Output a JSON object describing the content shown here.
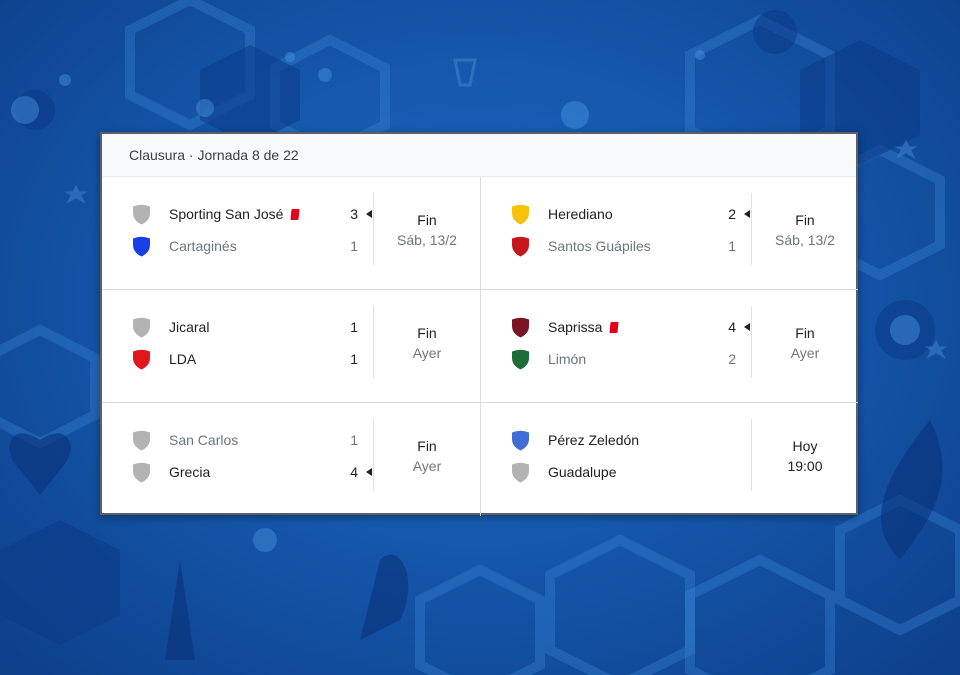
{
  "header": {
    "title": "Clausura · Jornada 8 de 22"
  },
  "colors": {
    "gray_shield": "#b3b3b3",
    "red_card": "#e2001a"
  },
  "matches": [
    {
      "home": {
        "name": "Sporting San José",
        "score": "3",
        "shield_color": "#b3b3b3",
        "red_card": true,
        "winner": true
      },
      "away": {
        "name": "Cartaginés",
        "score": "1",
        "shield_color": "#1a3ee8",
        "red_card": false,
        "winner": false
      },
      "status": "Fin",
      "date": "Sáb, 13/2"
    },
    {
      "home": {
        "name": "Herediano",
        "score": "2",
        "shield_color": "#f9c20a",
        "red_card": false,
        "winner": true
      },
      "away": {
        "name": "Santos Guápiles",
        "score": "1",
        "shield_color": "#c8161d",
        "red_card": false,
        "winner": false
      },
      "status": "Fin",
      "date": "Sáb, 13/2"
    },
    {
      "home": {
        "name": "Jicaral",
        "score": "1",
        "shield_color": "#b3b3b3",
        "red_card": false,
        "winner": false,
        "draw": true
      },
      "away": {
        "name": "LDA",
        "score": "1",
        "shield_color": "#e3161b",
        "red_card": false,
        "winner": false,
        "draw": true
      },
      "status": "Fin",
      "date": "Ayer"
    },
    {
      "home": {
        "name": "Saprissa",
        "score": "4",
        "shield_color": "#7b1523",
        "red_card": true,
        "winner": true
      },
      "away": {
        "name": "Limón",
        "score": "2",
        "shield_color": "#1e6b3a",
        "red_card": false,
        "winner": false
      },
      "status": "Fin",
      "date": "Ayer"
    },
    {
      "home": {
        "name": "San Carlos",
        "score": "1",
        "shield_color": "#b3b3b3",
        "red_card": false,
        "winner": false
      },
      "away": {
        "name": "Grecia",
        "score": "4",
        "shield_color": "#b3b3b3",
        "red_card": false,
        "winner": true
      },
      "status": "Fin",
      "date": "Ayer"
    },
    {
      "home": {
        "name": "Pérez Zeledón",
        "score": "",
        "shield_color": "#3f6fd6",
        "red_card": false,
        "winner": false,
        "upcoming": true
      },
      "away": {
        "name": "Guadalupe",
        "score": "",
        "shield_color": "#b3b3b3",
        "red_card": false,
        "winner": false,
        "upcoming": true
      },
      "status": "Hoy",
      "date": "19:00",
      "upcoming": true
    }
  ]
}
